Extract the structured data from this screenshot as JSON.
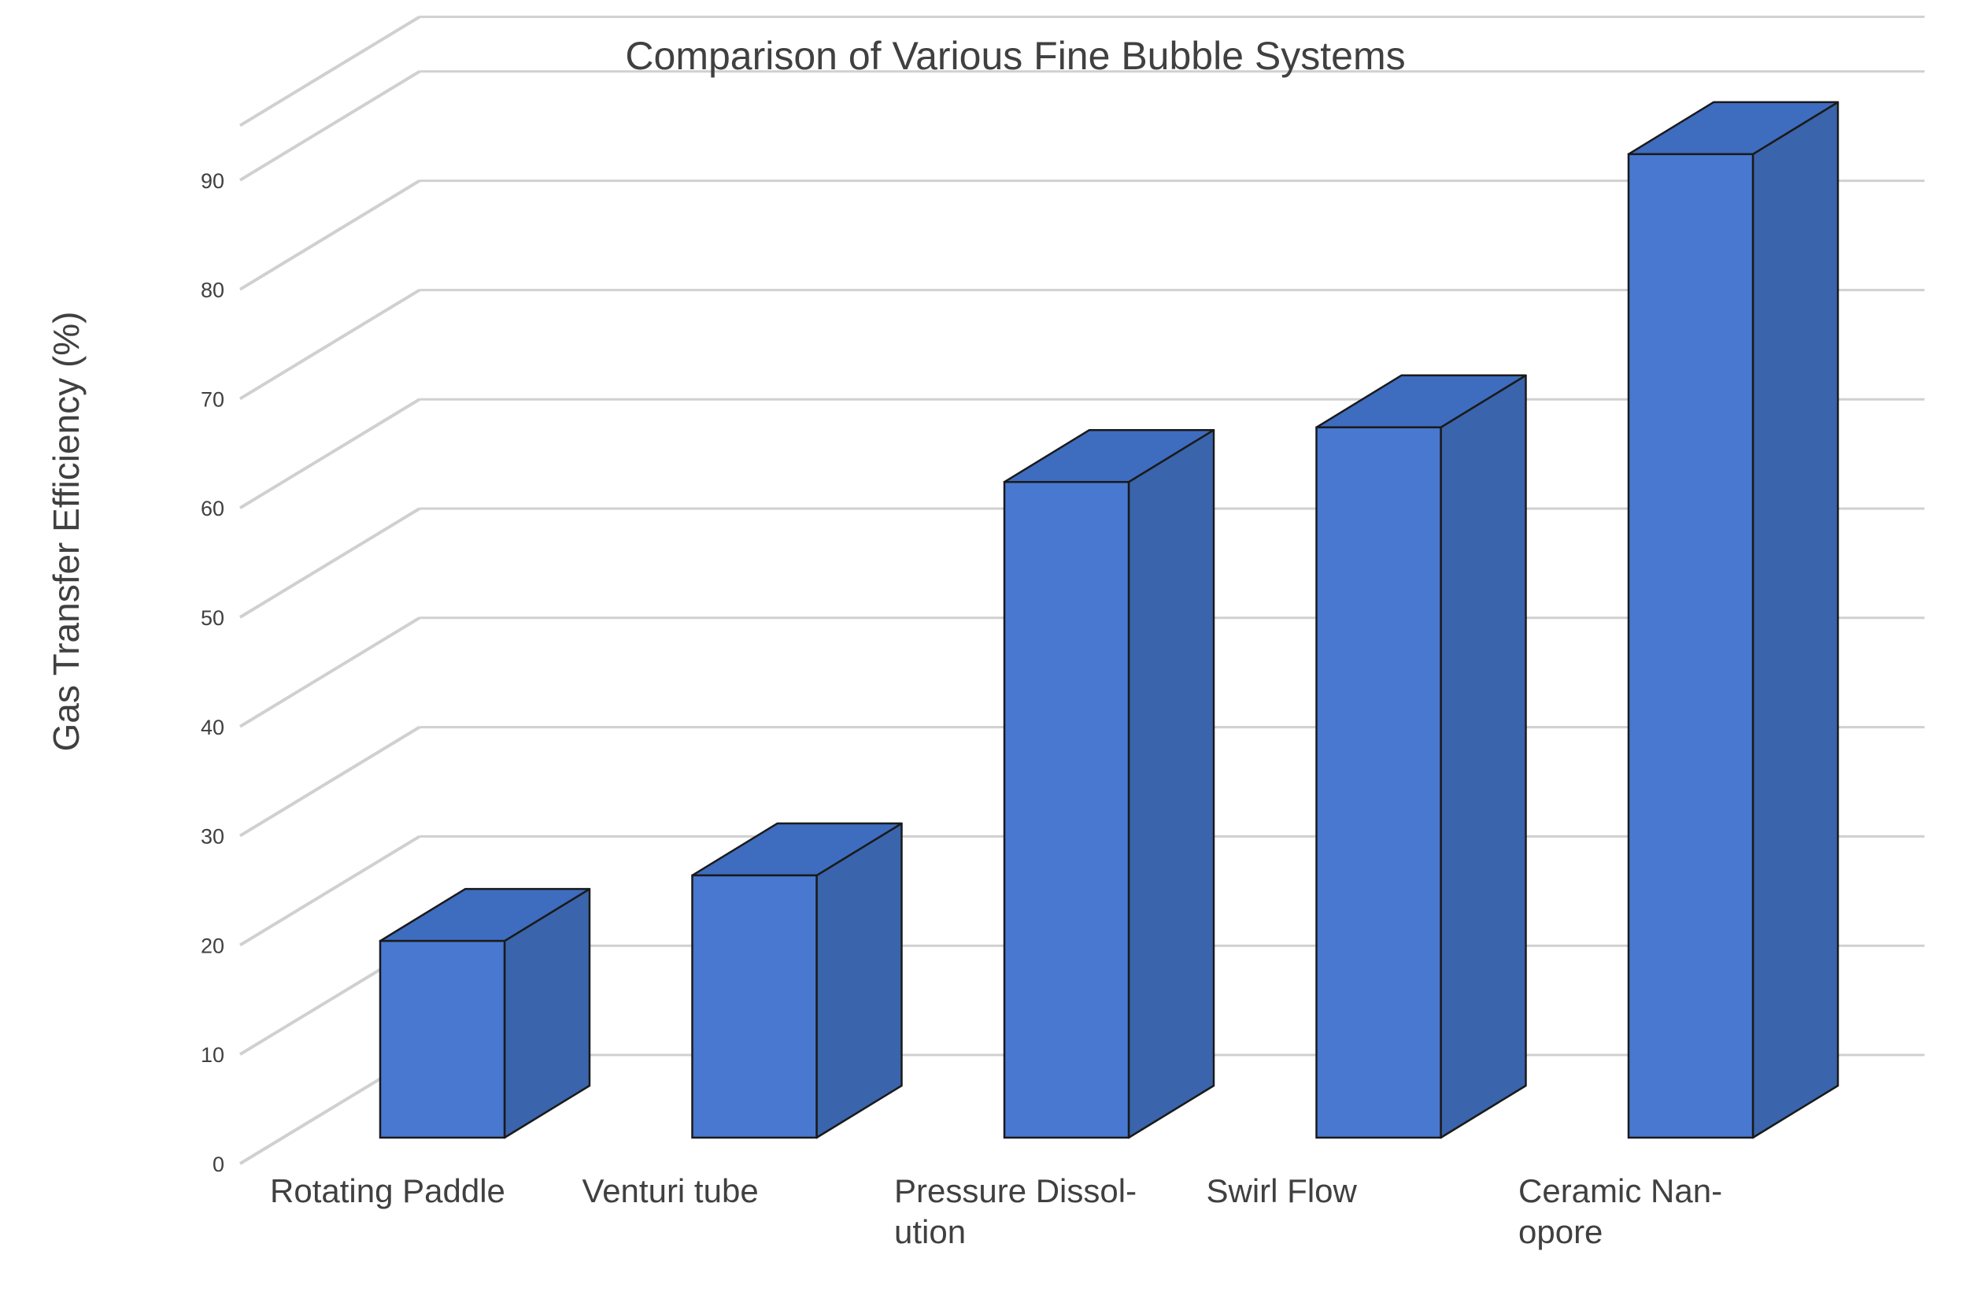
{
  "chart_data": {
    "type": "bar",
    "title": "Comparison of Various Fine Bubble Systems",
    "ylabel": "Gas Transfer Efficiency (%)",
    "xlabel": "",
    "categories": [
      "Rotating Paddle",
      "Venturi tube",
      "Pressure Dissol-ution",
      "Swirl Flow",
      "Ceramic Nan-opore"
    ],
    "category_lines": [
      [
        "Rotating Paddle"
      ],
      [
        "Venturi tube"
      ],
      [
        "Pressure Dissol-",
        "ution"
      ],
      [
        "Swirl Flow"
      ],
      [
        "Ceramic Nan-",
        "opore"
      ]
    ],
    "values": [
      18,
      24,
      60,
      65,
      90
    ],
    "ylim": [
      0,
      95
    ],
    "yticks": [
      0,
      10,
      20,
      30,
      40,
      50,
      60,
      70,
      80,
      90
    ],
    "grid": true,
    "style": "3d-column",
    "colors": {
      "bar_front": "#4878d0",
      "bar_side": "#3a64ab",
      "bar_top": "#3e6cbf",
      "bar_edge": "#1a1a1a",
      "grid": "#d0d0d0",
      "text": "#404040"
    }
  }
}
